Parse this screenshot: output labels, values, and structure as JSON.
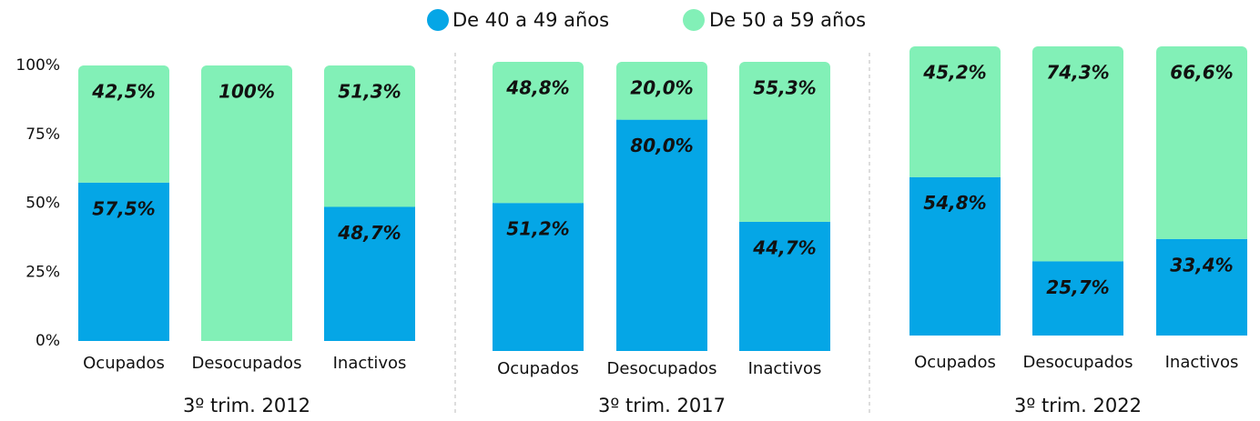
{
  "chart_data": {
    "type": "bar",
    "stacked": true,
    "categories": [
      "Ocupados",
      "Desocupados",
      "Inactivos",
      "Ocupados",
      "Desocupados",
      "Inactivos",
      "Ocupados",
      "Desocupados",
      "Inactivos"
    ],
    "groups": [
      "3º trim. 2012",
      "3º trim. 2017",
      "3º trim. 2022"
    ],
    "series": [
      {
        "name": "De 40 a 49 años",
        "color": "#05a6e6",
        "values": [
          57.5,
          0,
          48.7,
          51.2,
          80.0,
          44.7,
          54.8,
          25.7,
          33.4
        ],
        "value_labels": [
          "57,5%",
          null,
          "48,7%",
          "51,2%",
          "80,0%",
          "44,7%",
          "54,8%",
          "25,7%",
          "33,4%"
        ]
      },
      {
        "name": "De 50 a 59 años",
        "color": "#82f0b7",
        "values": [
          42.5,
          100,
          51.3,
          48.8,
          20.0,
          55.3,
          45.2,
          74.3,
          66.6
        ],
        "value_labels": [
          "42,5%",
          "100%",
          "51,3%",
          "48,8%",
          "20,0%",
          "55,3%",
          "45,2%",
          "74,3%",
          "66,6%"
        ]
      }
    ],
    "ylim": [
      0,
      100
    ],
    "yticks": [
      {
        "value": 0,
        "label": "0%"
      },
      {
        "value": 25,
        "label": "25%"
      },
      {
        "value": 50,
        "label": "50%"
      },
      {
        "value": 75,
        "label": "75%"
      },
      {
        "value": 100,
        "label": "100%"
      }
    ]
  }
}
